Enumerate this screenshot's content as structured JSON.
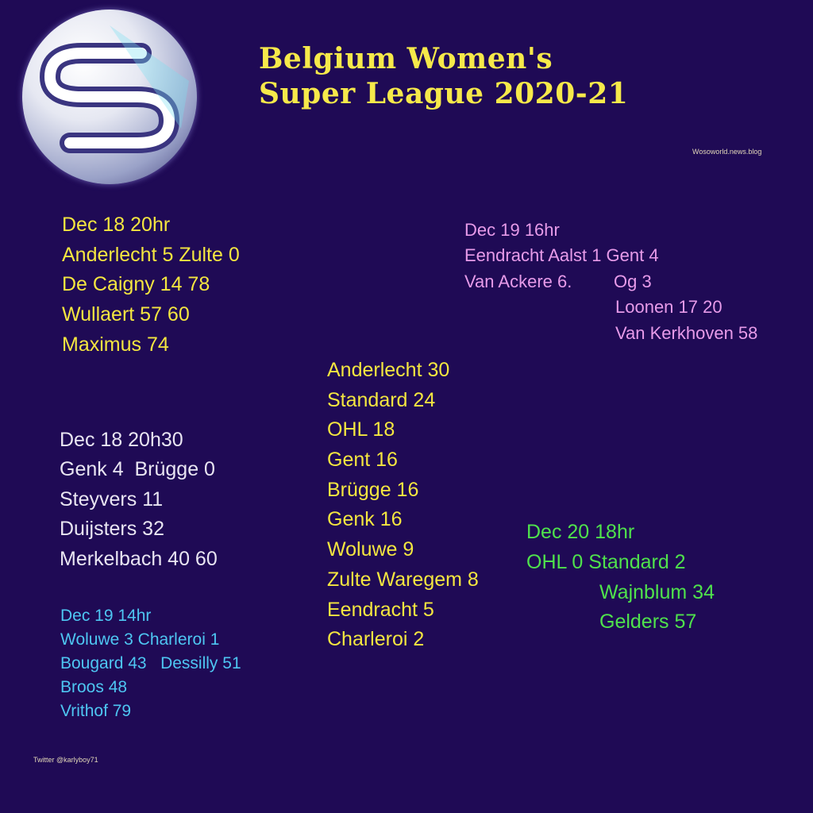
{
  "title_lines": [
    "Belgium Women's",
    "Super League 2020-21"
  ],
  "site": "Wosoworld.news.blog",
  "credit": "Twitter @karlyboy71",
  "match1": [
    "Dec 18 20hr",
    "Anderlecht 5 Zulte 0",
    "De Caigny 14 78",
    "Wullaert 57 60",
    "Maximus 74"
  ],
  "match2": [
    "Dec 18 20h30",
    "Genk 4  Brügge 0",
    "Steyvers 11",
    "Duijsters 32",
    "Merkelbach 40 60"
  ],
  "match3": [
    "Dec 19 14hr",
    "Woluwe 3 Charleroi 1",
    "Bougard 43   Dessilly 51",
    "Broos 48",
    "Vrithof 79"
  ],
  "match4": {
    "lines": [
      "Dec 19 16hr",
      "Eendracht Aalst 1 Gent 4",
      "Van Ackere 6."
    ],
    "away_scorers": [
      "Og 3",
      "Loonen 17 20",
      "Van Kerkhoven 58"
    ]
  },
  "match5": {
    "lines": [
      "Dec 20 18hr",
      "OHL 0 Standard 2"
    ],
    "away_scorers": [
      "Wajnblum 34",
      "Gelders 57"
    ]
  },
  "standings": [
    "Anderlecht 30",
    "Standard 24",
    "OHL 18",
    "Gent 16",
    "Brügge 16",
    "Genk 16",
    "Woluwe 9",
    "Zulte Waregem 8",
    "Eendracht 5",
    "Charleroi 2"
  ],
  "colors": {
    "background": "#1f0a55",
    "title": "#f6e94a",
    "match1": "#f4e640",
    "match2": "#e9e5f2",
    "match3": "#4ec6f2",
    "match4": "#e79be9",
    "match5": "#4fe24c"
  }
}
